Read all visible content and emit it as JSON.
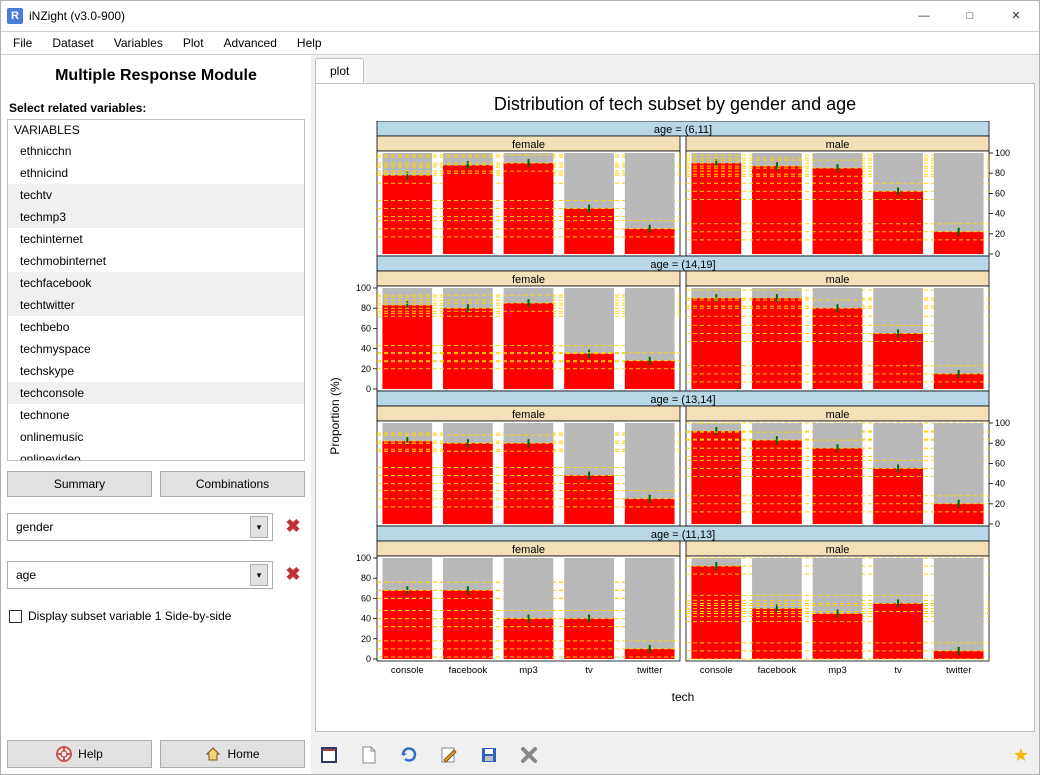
{
  "window": {
    "title": "iNZight (v3.0-900)"
  },
  "menu": [
    "File",
    "Dataset",
    "Variables",
    "Plot",
    "Advanced",
    "Help"
  ],
  "module_title": "Multiple Response Module",
  "select_label": "Select related variables:",
  "var_header": "VARIABLES",
  "variables": [
    {
      "name": "ethnicchn",
      "selected": false
    },
    {
      "name": "ethnicind",
      "selected": false
    },
    {
      "name": "techtv",
      "selected": true
    },
    {
      "name": "techmp3",
      "selected": true
    },
    {
      "name": "techinternet",
      "selected": false
    },
    {
      "name": "techmobinternet",
      "selected": false
    },
    {
      "name": "techfacebook",
      "selected": true
    },
    {
      "name": "techtwitter",
      "selected": true
    },
    {
      "name": "techbebo",
      "selected": false
    },
    {
      "name": "techmyspace",
      "selected": false
    },
    {
      "name": "techskype",
      "selected": false
    },
    {
      "name": "techconsole",
      "selected": true
    },
    {
      "name": "technone",
      "selected": false
    },
    {
      "name": "onlinemusic",
      "selected": false
    },
    {
      "name": "onlinevideo",
      "selected": false
    }
  ],
  "buttons": {
    "summary": "Summary",
    "combinations": "Combinations",
    "help": "Help",
    "home": "Home"
  },
  "subset1": "gender",
  "subset2": "age",
  "checkbox_label": "Display subset variable 1 Side-by-side",
  "checkbox_checked": false,
  "tab_label": "plot",
  "chart": {
    "title": "Distribution of tech subset by gender and age",
    "ylabel": "Proportion (%)",
    "xlabel": "tech",
    "yticks": [
      0,
      20,
      40,
      60,
      80,
      100
    ],
    "categories": [
      "console",
      "facebook",
      "mp3",
      "tv",
      "twitter"
    ],
    "col_headers": [
      "female",
      "male"
    ],
    "row_strips": [
      "age = (6,11]",
      "age = (14,19]",
      "age = (13,14]",
      "age = (11,13]"
    ],
    "colors": {
      "row_strip_bg": "#b8d8e8",
      "col_strip_bg": "#f3e0b8",
      "bar_fill": "#ff0000",
      "bar_empty": "#b8b8b8",
      "ci_line": "#ffd400",
      "marker": "#006600",
      "panel_bg": "#ffffff",
      "border": "#000000",
      "axis_text": "#000000"
    },
    "label_fontsize": 12,
    "title_fontsize": 18,
    "tick_fontsize": 9,
    "data": [
      {
        "age": "(6,11]",
        "gender": "female",
        "values": [
          78,
          88,
          90,
          45,
          25
        ]
      },
      {
        "age": "(6,11]",
        "gender": "male",
        "values": [
          90,
          87,
          85,
          62,
          22
        ]
      },
      {
        "age": "(14,19]",
        "gender": "female",
        "values": [
          83,
          80,
          85,
          35,
          28
        ]
      },
      {
        "age": "(14,19]",
        "gender": "male",
        "values": [
          90,
          90,
          80,
          55,
          15
        ]
      },
      {
        "age": "(13,14]",
        "gender": "female",
        "values": [
          82,
          80,
          80,
          48,
          25
        ]
      },
      {
        "age": "(13,14]",
        "gender": "male",
        "values": [
          92,
          83,
          75,
          55,
          20
        ]
      },
      {
        "age": "(11,13]",
        "gender": "female",
        "values": [
          68,
          68,
          40,
          40,
          10
        ]
      },
      {
        "age": "(11,13]",
        "gender": "male",
        "values": [
          92,
          50,
          45,
          55,
          8
        ]
      }
    ],
    "ci_half": 8
  }
}
